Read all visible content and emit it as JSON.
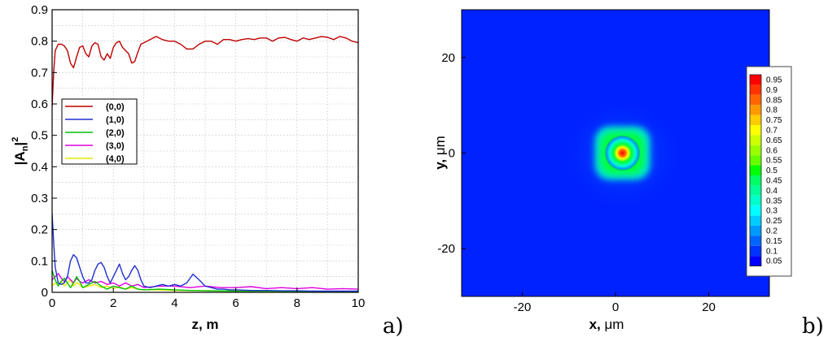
{
  "chart_data": [
    {
      "type": "line",
      "panel_label": "a)",
      "xlabel": "z, m",
      "ylabel_main": "|A",
      "ylabel_sub": "n",
      "ylabel_tail": "|",
      "ylabel_sup": "2",
      "xlim": [
        0,
        10
      ],
      "ylim": [
        0,
        0.9
      ],
      "xticks": [
        "0",
        "2",
        "4",
        "6",
        "8",
        "10"
      ],
      "yticks": [
        "0",
        "0.1",
        "0.2",
        "0.3",
        "0.4",
        "0.5",
        "0.6",
        "0.7",
        "0.8",
        "0.9"
      ],
      "grid": true,
      "legend_position": "left-middle",
      "series": [
        {
          "name": "(0,0)",
          "color": "#c00000",
          "x": [
            0,
            0.05,
            0.1,
            0.2,
            0.3,
            0.4,
            0.5,
            0.6,
            0.7,
            0.8,
            0.9,
            1.0,
            1.1,
            1.2,
            1.3,
            1.4,
            1.5,
            1.6,
            1.7,
            1.8,
            1.9,
            2.0,
            2.1,
            2.2,
            2.3,
            2.4,
            2.5,
            2.6,
            2.7,
            2.8,
            2.9,
            3.0,
            3.2,
            3.4,
            3.6,
            3.8,
            4.0,
            4.2,
            4.4,
            4.6,
            4.8,
            5.0,
            5.2,
            5.4,
            5.6,
            5.8,
            6.0,
            6.2,
            6.4,
            6.6,
            6.8,
            7.0,
            7.2,
            7.4,
            7.6,
            7.8,
            8.0,
            8.2,
            8.4,
            8.6,
            8.8,
            9.0,
            9.2,
            9.4,
            9.6,
            9.8,
            10.0
          ],
          "y": [
            0.59,
            0.7,
            0.77,
            0.79,
            0.79,
            0.785,
            0.77,
            0.73,
            0.715,
            0.75,
            0.78,
            0.785,
            0.76,
            0.75,
            0.785,
            0.795,
            0.79,
            0.75,
            0.74,
            0.76,
            0.745,
            0.78,
            0.795,
            0.8,
            0.78,
            0.77,
            0.76,
            0.73,
            0.735,
            0.765,
            0.79,
            0.795,
            0.805,
            0.815,
            0.805,
            0.8,
            0.8,
            0.79,
            0.775,
            0.775,
            0.79,
            0.8,
            0.8,
            0.79,
            0.805,
            0.805,
            0.8,
            0.805,
            0.808,
            0.805,
            0.81,
            0.81,
            0.8,
            0.81,
            0.812,
            0.805,
            0.8,
            0.81,
            0.805,
            0.81,
            0.815,
            0.812,
            0.805,
            0.815,
            0.81,
            0.8,
            0.795
          ]
        },
        {
          "name": "(1,0)",
          "color": "#2030d0",
          "x": [
            0,
            0.05,
            0.1,
            0.2,
            0.3,
            0.4,
            0.5,
            0.6,
            0.7,
            0.8,
            0.9,
            1.0,
            1.1,
            1.2,
            1.3,
            1.4,
            1.5,
            1.6,
            1.7,
            1.8,
            1.9,
            2.0,
            2.1,
            2.2,
            2.3,
            2.4,
            2.5,
            2.6,
            2.7,
            2.8,
            2.9,
            3.0,
            3.2,
            3.4,
            3.6,
            3.8,
            4.0,
            4.2,
            4.4,
            4.6,
            4.8,
            5.0,
            5.2,
            5.4,
            5.6,
            5.8,
            6.0,
            6.5,
            7.0,
            7.5,
            8.0,
            8.5,
            9.0,
            9.5,
            10.0
          ],
          "y": [
            0.25,
            0.16,
            0.08,
            0.03,
            0.025,
            0.03,
            0.05,
            0.1,
            0.12,
            0.11,
            0.08,
            0.05,
            0.03,
            0.03,
            0.04,
            0.07,
            0.09,
            0.095,
            0.08,
            0.05,
            0.03,
            0.05,
            0.07,
            0.09,
            0.06,
            0.04,
            0.05,
            0.07,
            0.085,
            0.07,
            0.04,
            0.02,
            0.015,
            0.02,
            0.025,
            0.02,
            0.025,
            0.02,
            0.03,
            0.058,
            0.04,
            0.02,
            0.015,
            0.01,
            0.01,
            0.008,
            0.008,
            0.006,
            0.006,
            0.005,
            0.005,
            0.004,
            0.004,
            0.004,
            0.004
          ]
        },
        {
          "name": "(2,0)",
          "color": "#00c000",
          "x": [
            0,
            0.1,
            0.2,
            0.3,
            0.4,
            0.5,
            0.6,
            0.7,
            0.8,
            0.9,
            1.0,
            1.2,
            1.4,
            1.6,
            1.8,
            2.0,
            2.2,
            2.4,
            2.6,
            2.8,
            3.0,
            3.5,
            4.0,
            4.5,
            5.0,
            6.0,
            7.0,
            8.0,
            9.0,
            10.0
          ],
          "y": [
            0.07,
            0.04,
            0.02,
            0.035,
            0.045,
            0.03,
            0.015,
            0.03,
            0.05,
            0.035,
            0.015,
            0.025,
            0.035,
            0.02,
            0.01,
            0.02,
            0.015,
            0.01,
            0.02,
            0.01,
            0.008,
            0.01,
            0.008,
            0.006,
            0.005,
            0.004,
            0.004,
            0.003,
            0.003,
            0.003
          ]
        },
        {
          "name": "(3,0)",
          "color": "#e000e0",
          "x": [
            0,
            0.1,
            0.2,
            0.3,
            0.4,
            0.5,
            0.6,
            0.7,
            0.8,
            0.9,
            1.0,
            1.2,
            1.4,
            1.6,
            1.8,
            2.0,
            2.2,
            2.4,
            2.6,
            2.8,
            3.0,
            3.5,
            4.0,
            4.5,
            5.0,
            5.5,
            6.0,
            6.5,
            7.0,
            7.5,
            8.0,
            8.5,
            9.0,
            9.5,
            10.0
          ],
          "y": [
            0.04,
            0.05,
            0.06,
            0.045,
            0.035,
            0.05,
            0.04,
            0.03,
            0.045,
            0.035,
            0.03,
            0.04,
            0.03,
            0.035,
            0.025,
            0.03,
            0.02,
            0.03,
            0.02,
            0.025,
            0.015,
            0.02,
            0.02,
            0.015,
            0.02,
            0.015,
            0.015,
            0.018,
            0.012,
            0.015,
            0.012,
            0.015,
            0.01,
            0.012,
            0.01
          ]
        },
        {
          "name": "(4,0)",
          "color": "#e8e800",
          "x": [
            0,
            0.1,
            0.2,
            0.3,
            0.4,
            0.5,
            0.6,
            0.7,
            0.8,
            0.9,
            1.0,
            1.2,
            1.4,
            1.6,
            1.8,
            2.0,
            2.2,
            2.4,
            2.6,
            2.8,
            3.0,
            3.5,
            4.0,
            5.0,
            6.0,
            7.0,
            8.0,
            9.0,
            10.0
          ],
          "y": [
            0.02,
            0.03,
            0.025,
            0.035,
            0.02,
            0.03,
            0.04,
            0.02,
            0.03,
            0.025,
            0.015,
            0.02,
            0.025,
            0.015,
            0.02,
            0.012,
            0.018,
            0.01,
            0.015,
            0.01,
            0.008,
            0.008,
            0.006,
            0.005,
            0.004,
            0.004,
            0.003,
            0.003,
            0.003
          ]
        }
      ]
    },
    {
      "type": "heatmap",
      "panel_label": "b)",
      "xlabel_main": "x, ",
      "xlabel_unit": "μm",
      "ylabel_main": "y, ",
      "ylabel_unit": "μm",
      "xlim": [
        -33,
        33
      ],
      "ylim": [
        -30,
        30
      ],
      "xticks": [
        "-20",
        "0",
        "20"
      ],
      "yticks": [
        "-20",
        "0",
        "20"
      ],
      "peak": {
        "x": 1.5,
        "y": 0,
        "value": 1.0
      },
      "colorbar_position": "right",
      "colorbar_levels": [
        "0.95",
        "0.9",
        "0.85",
        "0.8",
        "0.75",
        "0.7",
        "0.65",
        "0.6",
        "0.55",
        "0.5",
        "0.45",
        "0.4",
        "0.35",
        "0.3",
        "0.25",
        "0.2",
        "0.15",
        "0.1",
        "0.05"
      ],
      "colorbar_colors": [
        "#ff0000",
        "#ff3300",
        "#ff6600",
        "#ff9900",
        "#ffcc00",
        "#ffff00",
        "#ccff00",
        "#99ff00",
        "#66ff00",
        "#00ff00",
        "#00ff66",
        "#00ff99",
        "#00ffcc",
        "#00ffff",
        "#00ccff",
        "#0099ff",
        "#0066ff",
        "#0033ff",
        "#0000ff"
      ]
    }
  ]
}
